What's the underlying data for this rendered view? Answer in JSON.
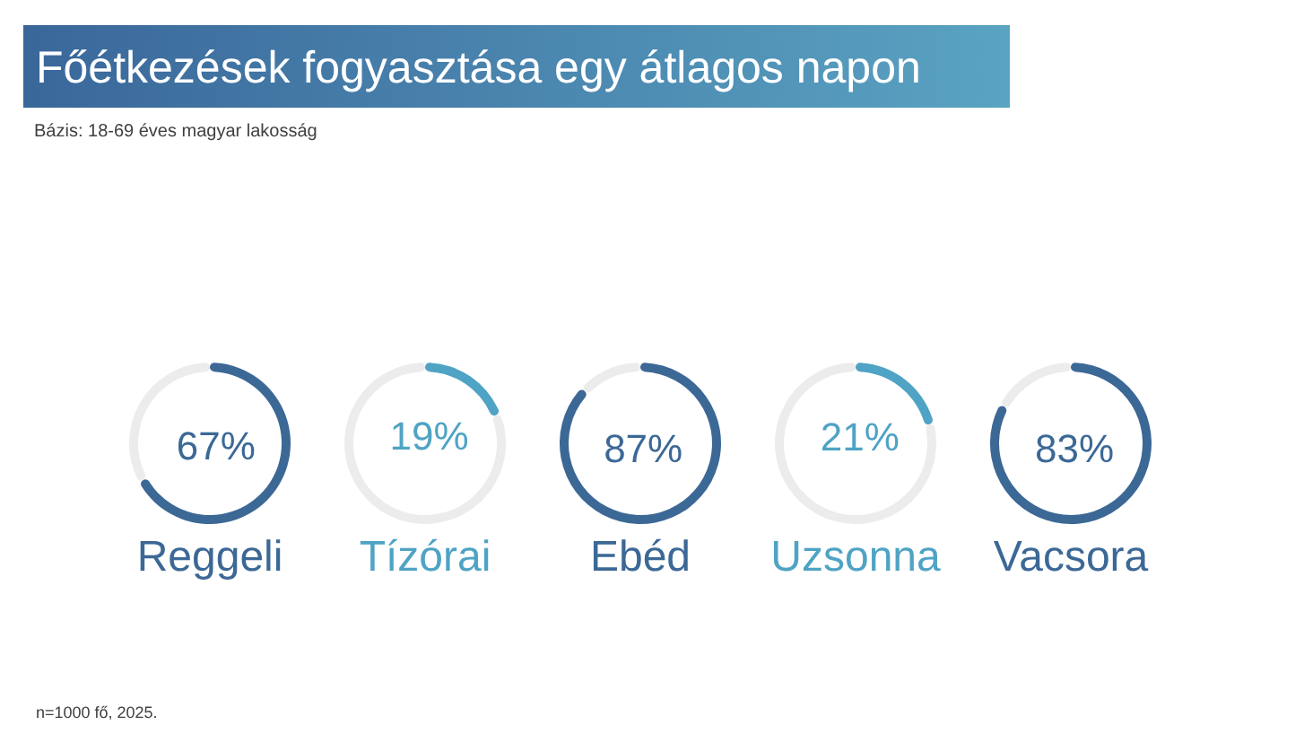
{
  "chart_data": [
    {
      "type": "other",
      "title": "Főétkezések fogyasztása egy átlagos napon",
      "subtitle": "Bázis: 18-69 éves magyar lakosság",
      "annotations": [
        "n=1000 fő, 2025."
      ]
    },
    {
      "type": "donut",
      "title": "Reggeli",
      "categories": [
        null,
        null
      ],
      "values": [
        67,
        33
      ],
      "colors": [
        "#3c6896",
        "#ececec"
      ],
      "value_labels": [
        "67%",
        null
      ]
    },
    {
      "type": "donut",
      "title": "Tízórai",
      "categories": [
        null,
        null
      ],
      "values": [
        19,
        81
      ],
      "colors": [
        "#4fa3c4",
        "#ececec"
      ],
      "value_labels": [
        "19%",
        null
      ]
    },
    {
      "type": "donut",
      "title": "Ebéd",
      "categories": [
        null,
        null
      ],
      "values": [
        87,
        13
      ],
      "colors": [
        "#3c6896",
        "#ececec"
      ],
      "value_labels": [
        "87%",
        null
      ]
    },
    {
      "type": "donut",
      "title": "Uzsonna",
      "categories": [
        null,
        null
      ],
      "values": [
        21,
        79
      ],
      "colors": [
        "#4fa3c4",
        "#ececec"
      ],
      "value_labels": [
        "21%",
        null
      ]
    },
    {
      "type": "donut",
      "title": "Vacsora",
      "categories": [
        null,
        null
      ],
      "values": [
        83,
        17
      ],
      "colors": [
        "#3c6896",
        "#ececec"
      ],
      "value_labels": [
        "83%",
        null
      ]
    }
  ]
}
